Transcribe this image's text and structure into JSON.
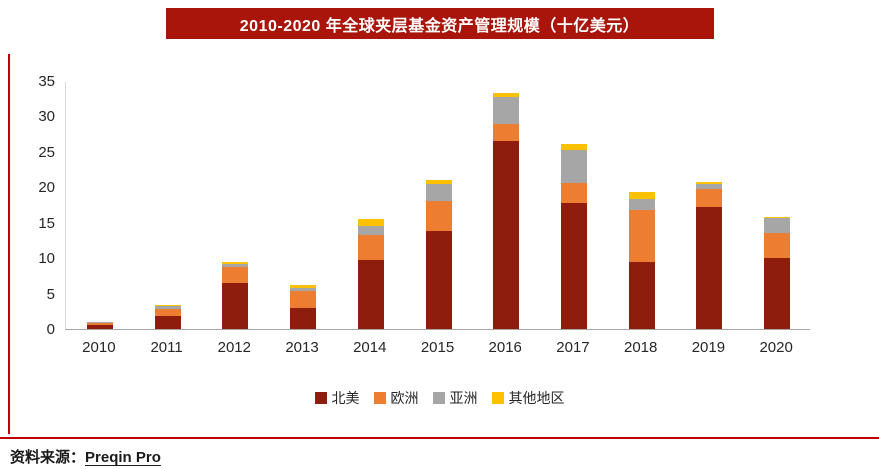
{
  "header": {
    "title": "2010-2020 年全球夹层基金资产管理规模（十亿美元）",
    "banner_color": "#A9150B",
    "title_color": "#FFFFFF"
  },
  "chart_data": {
    "type": "bar",
    "stacked": true,
    "title": "2010-2020 年全球夹层基金资产管理规模（十亿美元）",
    "categories": [
      "2010",
      "2011",
      "2012",
      "2013",
      "2014",
      "2015",
      "2016",
      "2017",
      "2018",
      "2019",
      "2020"
    ],
    "series": [
      {
        "name": "北美",
        "color": "#8F1D0E",
        "values": [
          0.5,
          1.8,
          6.5,
          3.0,
          9.8,
          13.8,
          26.5,
          17.8,
          9.5,
          17.2,
          10.0
        ]
      },
      {
        "name": "欧洲",
        "color": "#ED7D31",
        "values": [
          0.4,
          1.0,
          2.2,
          2.3,
          3.5,
          4.2,
          2.5,
          2.8,
          7.3,
          2.6,
          3.5
        ]
      },
      {
        "name": "亚洲",
        "color": "#A6A6A6",
        "values": [
          0.1,
          0.5,
          0.5,
          0.5,
          1.2,
          2.5,
          3.8,
          4.6,
          1.5,
          0.7,
          2.1
        ]
      },
      {
        "name": "其他地区",
        "color": "#FFC000",
        "values": [
          0.05,
          0.1,
          0.3,
          0.4,
          1.0,
          0.5,
          0.5,
          0.9,
          1.0,
          0.2,
          0.2
        ]
      }
    ],
    "ylim": [
      0,
      35
    ],
    "yticks": [
      0,
      5,
      10,
      15,
      20,
      25,
      30,
      35
    ],
    "grid": false,
    "legend_position": "bottom"
  },
  "footer": {
    "label": "资料来源：",
    "source": "Preqin Pro"
  }
}
